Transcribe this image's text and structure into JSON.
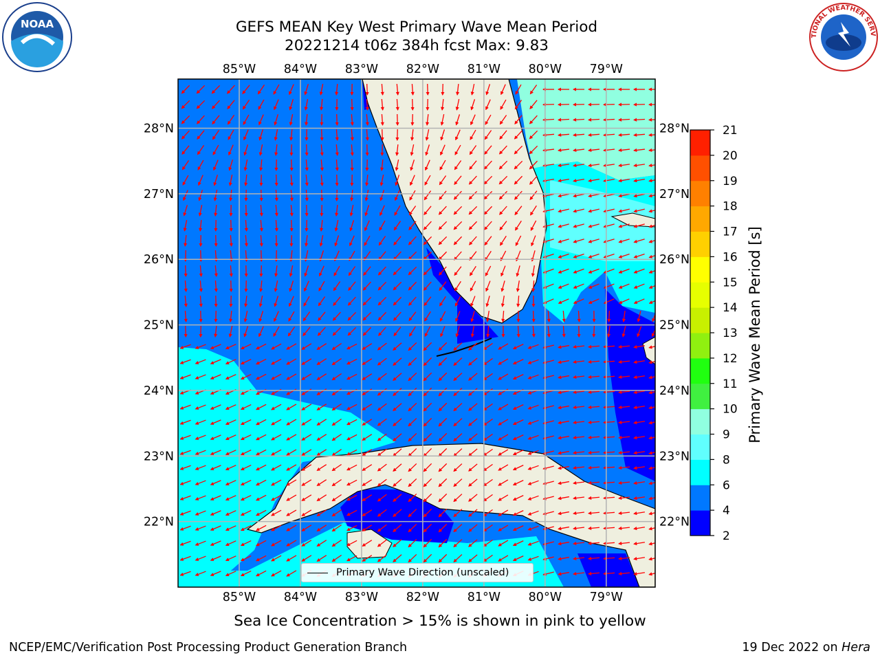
{
  "title": {
    "line1": "GEFS MEAN Key West Primary Wave Mean Period",
    "line2": "20221214 t06z 384h fcst   Max: 9.83"
  },
  "logos": {
    "left": {
      "name": "noaa-logo",
      "text": "NOAA"
    },
    "right": {
      "name": "nws-logo",
      "text": "NATIONAL WEATHER SERVICE"
    }
  },
  "map": {
    "lon_labels": [
      "85°W",
      "84°W",
      "83°W",
      "82°W",
      "81°W",
      "80°W",
      "79°W"
    ],
    "lat_labels": [
      "28°N",
      "27°N",
      "26°N",
      "25°N",
      "24°N",
      "23°N",
      "22°N"
    ],
    "extent": {
      "lon_min": -86.0,
      "lon_max": -78.2,
      "lat_min": 21.0,
      "lat_max": 28.75
    },
    "colors": {
      "land": "#efefdf",
      "band_2_4": "#0000ff",
      "band_4_6": "#0078ff",
      "band_6_8": "#00ffff",
      "band_8_9": "#60fffe",
      "band_9_10": "#90ffe0",
      "arrow": "#ff0000",
      "grid": "#b3b3b3"
    }
  },
  "legend": {
    "label": "Primary Wave Direction (unscaled)"
  },
  "colorbar": {
    "label": "Primary Wave Mean Period [s]",
    "ticks": [
      "2",
      "4",
      "6",
      "8",
      "9",
      "10",
      "11",
      "12",
      "13",
      "14",
      "15",
      "16",
      "17",
      "18",
      "19",
      "20",
      "21"
    ],
    "colors": [
      "#0000ff",
      "#0078ff",
      "#00ffff",
      "#60fffe",
      "#90ffe0",
      "#40f040",
      "#20ff10",
      "#90f010",
      "#c8f000",
      "#e6ff00",
      "#ffff00",
      "#ffd000",
      "#ffa800",
      "#ff8000",
      "#ff5000",
      "#ff2000"
    ]
  },
  "note": "Sea Ice Concentration > 15% is shown in pink to yellow",
  "footer": {
    "left": "NCEP/EMC/Verification Post Processing Product Generation Branch",
    "right_prefix": "19 Dec 2022 on ",
    "right_host": "Hera"
  }
}
